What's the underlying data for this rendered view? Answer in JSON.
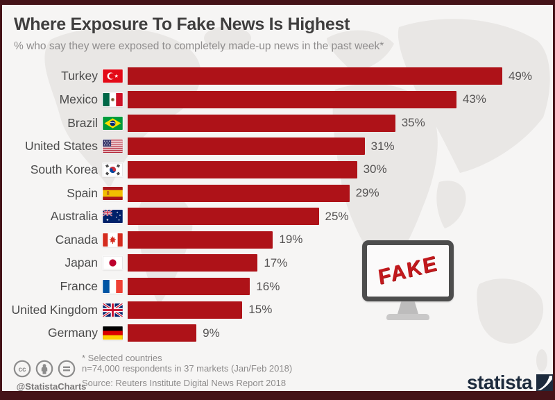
{
  "header": {
    "title": "Where Exposure To Fake News Is Highest",
    "subtitle": "% who say they were exposed to completely made-up news in the past week*"
  },
  "chart_data": {
    "type": "bar",
    "orientation": "horizontal",
    "title": "Where Exposure To Fake News Is Highest",
    "subtitle": "% who say they were exposed to completely made-up news in the past week*",
    "unit": "percent",
    "xlim": [
      0,
      55
    ],
    "grid": false,
    "legend": false,
    "bar_color": "#ae1218",
    "categories": [
      "Turkey",
      "Mexico",
      "Brazil",
      "United States",
      "South Korea",
      "Spain",
      "Australia",
      "Canada",
      "Japan",
      "France",
      "United Kingdom",
      "Germany"
    ],
    "values": [
      49,
      43,
      35,
      31,
      30,
      29,
      25,
      19,
      17,
      16,
      15,
      9
    ],
    "value_labels": [
      "49%",
      "43%",
      "35%",
      "31%",
      "30%",
      "29%",
      "25%",
      "19%",
      "17%",
      "16%",
      "15%",
      "9%"
    ],
    "flag_icons": [
      "turkey-flag-icon",
      "mexico-flag-icon",
      "brazil-flag-icon",
      "united-states-flag-icon",
      "south-korea-flag-icon",
      "spain-flag-icon",
      "australia-flag-icon",
      "canada-flag-icon",
      "japan-flag-icon",
      "france-flag-icon",
      "united-kingdom-flag-icon",
      "germany-flag-icon"
    ]
  },
  "illustration": {
    "monitor_screen_text": "FAKE",
    "monitor_text_color": "#c2191d"
  },
  "footer": {
    "license_icons": [
      "cc-icon",
      "by-icon",
      "nd-icon"
    ],
    "credit_handle": "@StatistaCharts",
    "footnote_line1": "* Selected countries",
    "footnote_line2": "n=74,000 respondents in 37 markets (Jan/Feb 2018)",
    "source_line": "Source: Reuters Institute Digital News Report 2018",
    "brand_name": "statista"
  },
  "colors": {
    "frame_border": "#451318",
    "canvas_background": "#f6f5f4",
    "map_fill": "#e9e7e5",
    "title_text": "#3f3e3e",
    "subtitle_text": "#8f8d8d",
    "label_text": "#4b4b4b",
    "value_text": "#555353",
    "footer_text": "#8d8b8b",
    "brand_navy": "#1d2b3d"
  }
}
